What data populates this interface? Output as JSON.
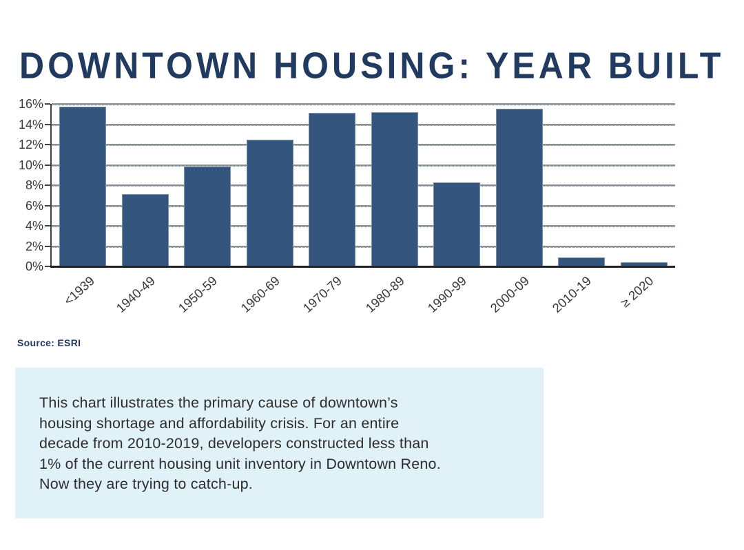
{
  "page": {
    "title": "DOWNTOWN HOUSING: YEAR BUILT",
    "source": "Source: ESRI"
  },
  "chart_data": {
    "type": "bar",
    "title": "DOWNTOWN HOUSING: YEAR BUILT",
    "categories": [
      "<1939",
      "1940-49",
      "1950-59",
      "1960-69",
      "1970-79",
      "1980-89",
      "1990-99",
      "2000-09",
      "2010-19",
      "≥ 2020"
    ],
    "values": [
      15.7,
      7.1,
      9.8,
      12.5,
      15.1,
      15.2,
      8.3,
      15.5,
      0.9,
      0.4
    ],
    "unit": "%",
    "xlabel": "",
    "ylabel": "",
    "ylim": [
      0,
      16
    ],
    "ytick_step": 2,
    "ytick_labels": [
      "16%",
      "14%",
      "12%",
      "10%",
      "8%",
      "6%",
      "4%",
      "2%",
      "0%"
    ],
    "grid": "horizontal",
    "legend": "none",
    "bar_color": "#34567E",
    "source": "Source: ESRI"
  },
  "note": {
    "lines": [
      "This chart illustrates the primary cause of downtown’s",
      "housing shortage and affordability crisis. For an entire",
      "decade from 2010-2019, developers constructed less than",
      "1% of the current housing unit inventory in Downtown Reno.",
      "Now they are trying to catch-up."
    ]
  },
  "colors": {
    "title_navy": "#203A60",
    "bar_fill": "#34567E",
    "note_bg": "#E1F1F8",
    "gridline": "#8A9095",
    "axis": "#3E4244",
    "tick_label": "#3A3A3A"
  }
}
